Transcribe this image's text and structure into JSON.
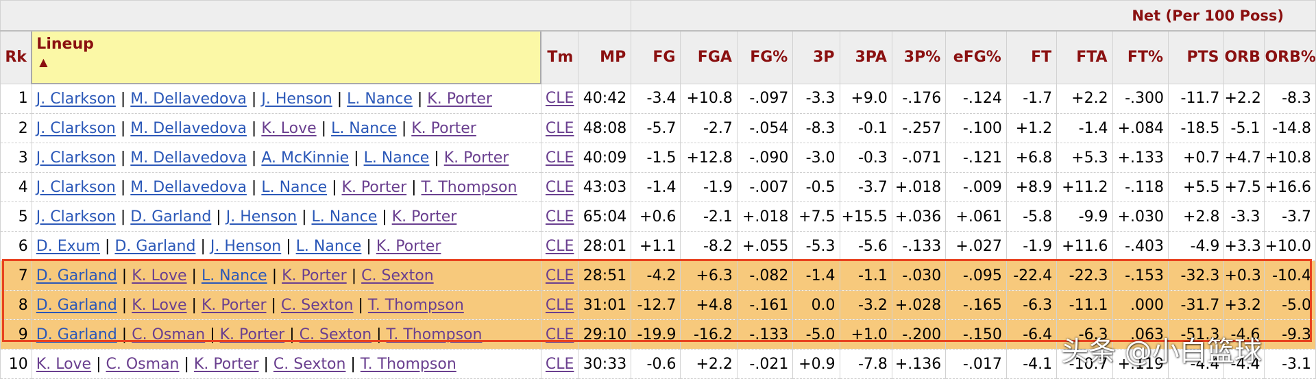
{
  "group_header": "Net (Per 100 Poss)",
  "columns": {
    "rk": "Rk",
    "lineup": "Lineup",
    "sort_indicator": "▲",
    "tm": "Tm",
    "mp": "MP",
    "fg": "FG",
    "fga": "FGA",
    "fg_pct": "FG%",
    "three_p": "3P",
    "three_pa": "3PA",
    "three_p_pct": "3P%",
    "efg_pct": "eFG%",
    "ft": "FT",
    "fta": "FTA",
    "ft_pct": "FT%",
    "pts": "PTS",
    "orb": "ORB",
    "orb_pct": "ORB%"
  },
  "rows": [
    {
      "rk": "1",
      "players": [
        "J. Clarkson",
        "M. Dellavedova",
        "J. Henson",
        "L. Nance",
        "K. Porter"
      ],
      "tm": "CLE",
      "mp": "40:42",
      "stats": [
        "-3.4",
        "+10.8",
        "-.097",
        "-3.3",
        "+9.0",
        "-.176",
        "-.124",
        "-1.7",
        "+2.2",
        "-.300",
        "-11.7",
        "+2.2",
        "-8.3"
      ]
    },
    {
      "rk": "2",
      "players": [
        "J. Clarkson",
        "M. Dellavedova",
        "K. Love",
        "L. Nance",
        "K. Porter"
      ],
      "tm": "CLE",
      "mp": "48:08",
      "stats": [
        "-5.7",
        "-2.7",
        "-.054",
        "-8.3",
        "-0.1",
        "-.257",
        "-.100",
        "+1.2",
        "-1.4",
        "+.084",
        "-18.5",
        "-5.1",
        "-14.8"
      ]
    },
    {
      "rk": "3",
      "players": [
        "J. Clarkson",
        "M. Dellavedova",
        "A. McKinnie",
        "L. Nance",
        "K. Porter"
      ],
      "tm": "CLE",
      "mp": "40:09",
      "stats": [
        "-1.5",
        "+12.8",
        "-.090",
        "-3.0",
        "-0.3",
        "-.071",
        "-.121",
        "+6.8",
        "+5.3",
        "+.133",
        "+0.7",
        "+4.7",
        "+10.8"
      ]
    },
    {
      "rk": "4",
      "players": [
        "J. Clarkson",
        "M. Dellavedova",
        "L. Nance",
        "K. Porter",
        "T. Thompson"
      ],
      "tm": "CLE",
      "mp": "43:03",
      "stats": [
        "-1.4",
        "-1.9",
        "-.007",
        "-0.5",
        "-3.7",
        "+.018",
        "-.009",
        "+8.9",
        "+11.2",
        "-.118",
        "+5.5",
        "+7.5",
        "+16.6"
      ]
    },
    {
      "rk": "5",
      "players": [
        "J. Clarkson",
        "D. Garland",
        "J. Henson",
        "L. Nance",
        "K. Porter"
      ],
      "tm": "CLE",
      "mp": "65:04",
      "stats": [
        "+0.6",
        "-2.1",
        "+.018",
        "+7.5",
        "+15.5",
        "+.036",
        "+.061",
        "-5.8",
        "-9.9",
        "+.030",
        "+2.8",
        "-3.3",
        "-3.7"
      ]
    },
    {
      "rk": "6",
      "players": [
        "D. Exum",
        "D. Garland",
        "J. Henson",
        "L. Nance",
        "K. Porter"
      ],
      "tm": "CLE",
      "mp": "28:01",
      "stats": [
        "+1.1",
        "-8.2",
        "+.055",
        "-5.3",
        "-5.6",
        "-.133",
        "+.027",
        "-1.9",
        "+11.6",
        "-.403",
        "-4.9",
        "+3.3",
        "+10.0"
      ]
    },
    {
      "rk": "7",
      "players": [
        "D. Garland",
        "K. Love",
        "L. Nance",
        "K. Porter",
        "C. Sexton"
      ],
      "tm": "CLE",
      "mp": "28:51",
      "stats": [
        "-4.2",
        "+6.3",
        "-.082",
        "-1.4",
        "-1.1",
        "-.030",
        "-.095",
        "-22.4",
        "-22.3",
        "-.153",
        "-32.3",
        "+0.3",
        "-10.4"
      ]
    },
    {
      "rk": "8",
      "players": [
        "D. Garland",
        "K. Love",
        "K. Porter",
        "C. Sexton",
        "T. Thompson"
      ],
      "tm": "CLE",
      "mp": "31:01",
      "stats": [
        "-12.7",
        "+4.8",
        "-.161",
        "0.0",
        "-3.2",
        "+.028",
        "-.165",
        "-6.3",
        "-11.1",
        ".000",
        "-31.7",
        "+3.2",
        "-5.0"
      ]
    },
    {
      "rk": "9",
      "players": [
        "D. Garland",
        "C. Osman",
        "K. Porter",
        "C. Sexton",
        "T. Thompson"
      ],
      "tm": "CLE",
      "mp": "29:10",
      "stats": [
        "-19.9",
        "-16.2",
        "-.133",
        "-5.0",
        "+1.0",
        "-.200",
        "-.150",
        "-6.4",
        "-6.3",
        ".063",
        "-51.3",
        "-4.6",
        "-9.3"
      ]
    },
    {
      "rk": "10",
      "players": [
        "K. Love",
        "C. Osman",
        "K. Porter",
        "C. Sexton",
        "T. Thompson"
      ],
      "tm": "CLE",
      "mp": "30:33",
      "stats": [
        "-0.6",
        "+2.2",
        "-.021",
        "+0.9",
        "-7.8",
        "+.136",
        "-.017",
        "-4.1",
        "-10.7",
        "+.119",
        "-4.4",
        "-4.4",
        "-3.1"
      ]
    }
  ],
  "highlight": {
    "rows": [
      7,
      8,
      9
    ],
    "fill": "#f7c97c",
    "border": "#e8421f"
  },
  "colors": {
    "header_text": "#8a1010",
    "link": "#2b58b8",
    "visited_link": "#6a3f8f",
    "lineup_header_bg": "#fbf8a6",
    "header_bg": "#eeeeee"
  },
  "watermark": "头条 @小白篮球"
}
